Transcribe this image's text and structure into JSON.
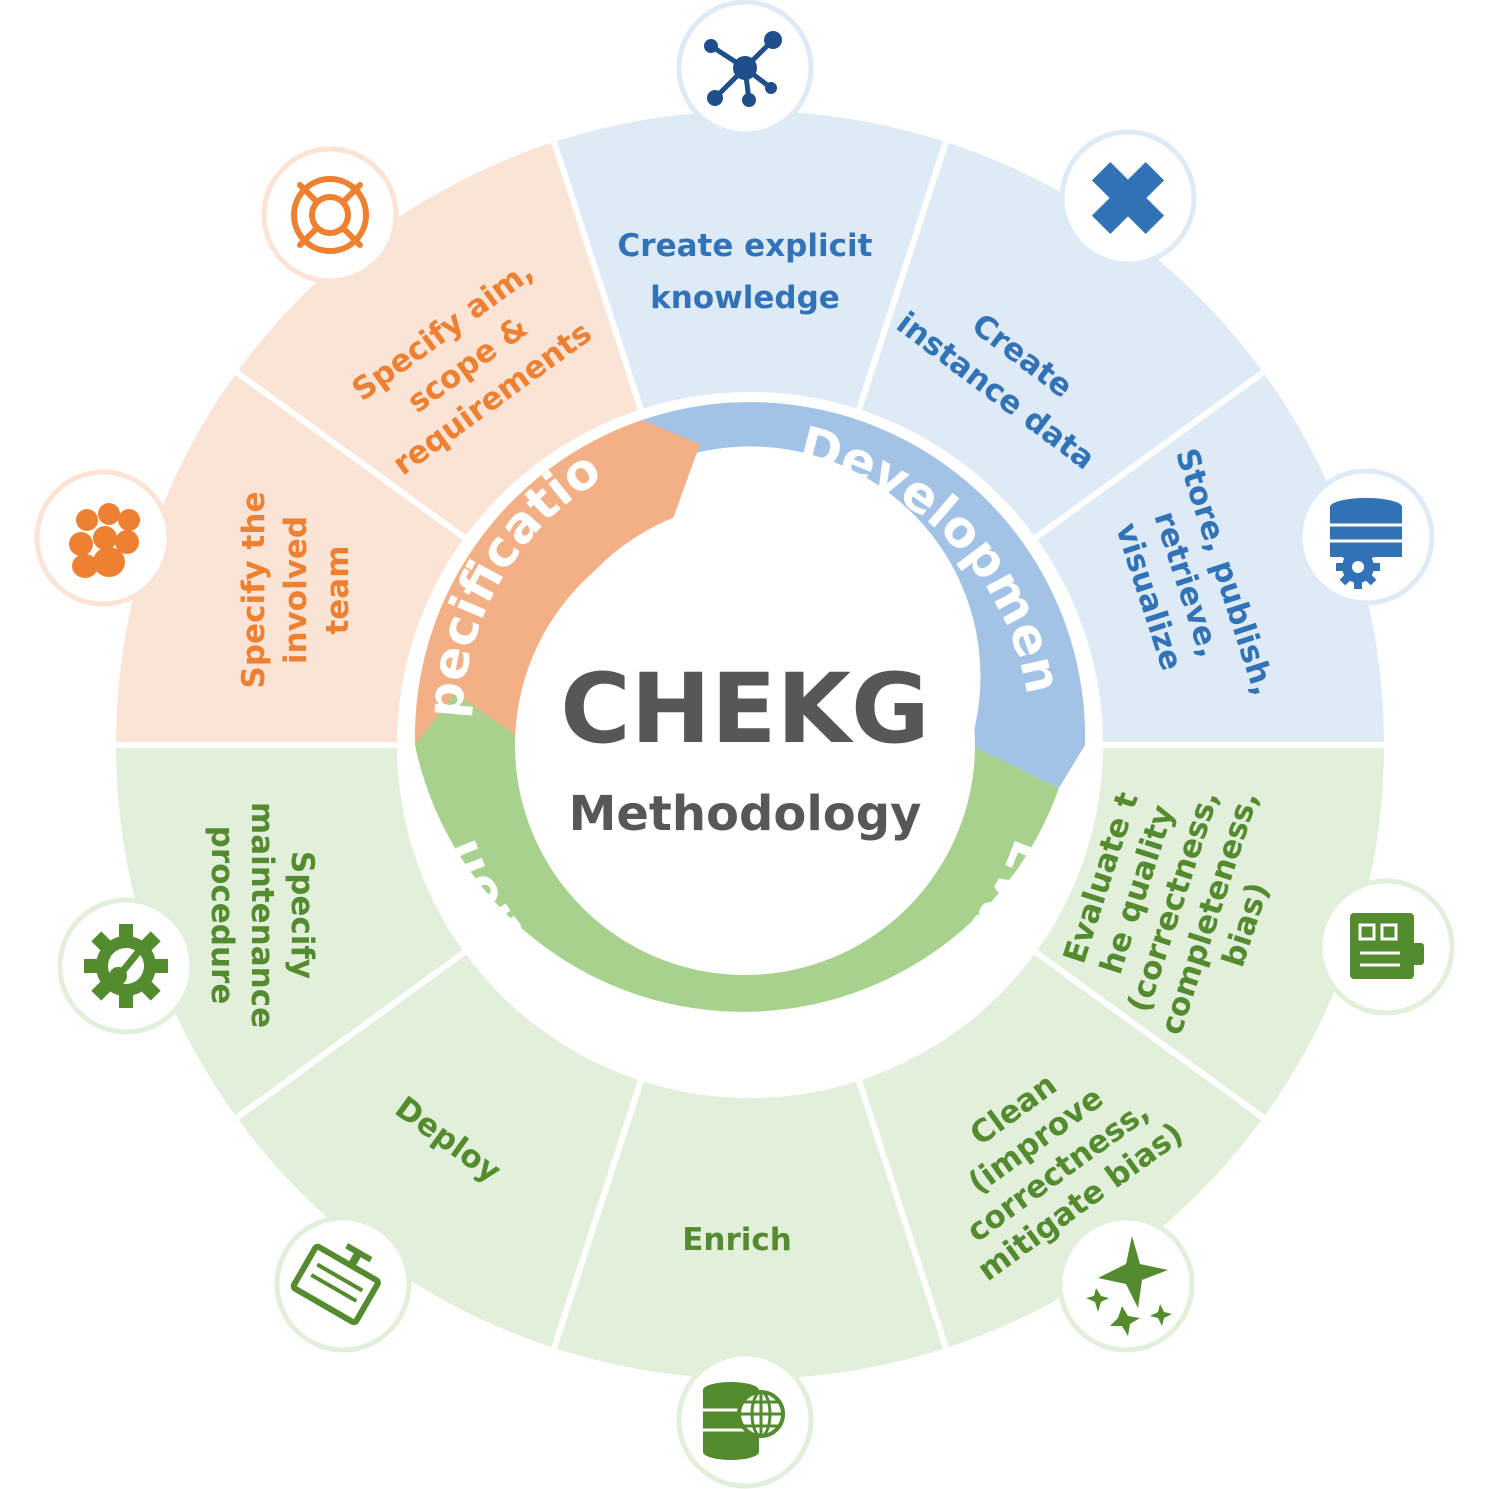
{
  "center": {
    "title": "CHEKG",
    "subtitle": "Methodology"
  },
  "phases": [
    {
      "label": "Specification",
      "color": "#f3b086"
    },
    {
      "label": "Development",
      "color": "#a2c3e6"
    },
    {
      "label": "Evaluation & Exploitation",
      "color": "#a8d18d"
    }
  ],
  "palette": {
    "spec_sector": "#fbe3d5",
    "dev_sector": "#deebf7",
    "eval_sector": "#e2efda",
    "spec_text": "#ee8131",
    "dev_text": "#3173b6",
    "eval_text": "#538b2e",
    "dev_icon_dark": "#1f4e8c"
  },
  "steps": {
    "specify_team": {
      "lines": [
        "Specify the",
        "involved",
        "team"
      ],
      "icon": "team-icon"
    },
    "specify_aim": {
      "lines": [
        "Specify aim,",
        "scope &",
        "requirements"
      ],
      "icon": "target-icon"
    },
    "create_knowledge": {
      "lines": [
        "Create explicit",
        "knowledge"
      ],
      "icon": "network-icon"
    },
    "create_instance": {
      "lines": [
        "Create",
        "instance data"
      ],
      "icon": "cross-icon"
    },
    "store": {
      "lines": [
        "Store, publish,",
        "retrieve,",
        "visualize"
      ],
      "icon": "database-gear-icon"
    },
    "evaluate": {
      "lines": [
        "Evaluate t",
        "he quality",
        "(correctness,",
        "completeness,",
        "bias)"
      ],
      "icon": "clipboard-icon"
    },
    "clean": {
      "lines": [
        "Clean",
        "(improve",
        "correctness,",
        "mitigate bias)"
      ],
      "icon": "sparkle-icon"
    },
    "enrich": {
      "lines": [
        "Enrich"
      ],
      "icon": "database-globe-icon"
    },
    "deploy": {
      "lines": [
        "Deploy"
      ],
      "icon": "deploy-icon"
    },
    "maintain": {
      "lines": [
        "Specify",
        "maintenance",
        "procedure"
      ],
      "icon": "gear-wrench-icon"
    }
  }
}
